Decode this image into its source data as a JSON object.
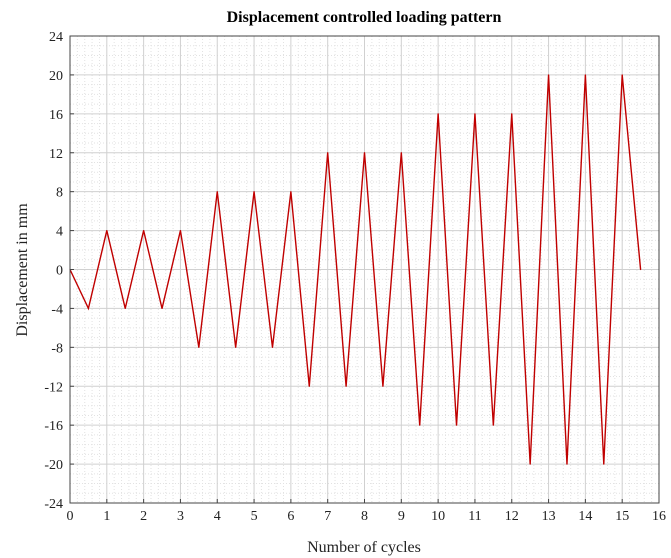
{
  "chart_data": {
    "type": "line",
    "title": "Displacement controlled loading pattern",
    "xlabel": "Number of cycles",
    "ylabel": "Displacement in mm",
    "xlim": [
      0,
      16
    ],
    "ylim": [
      -24,
      24
    ],
    "xticks": [
      0,
      1,
      2,
      3,
      4,
      5,
      6,
      7,
      8,
      9,
      10,
      11,
      12,
      13,
      14,
      15,
      16
    ],
    "yticks": [
      -24,
      -20,
      -16,
      -12,
      -8,
      -4,
      0,
      4,
      8,
      12,
      16,
      20,
      24
    ],
    "grid": true,
    "minor_grid": true,
    "series": [
      {
        "color": "#c00000",
        "x": [
          0,
          0.5,
          1,
          1.5,
          2,
          2.5,
          3,
          3.5,
          4,
          4.5,
          5,
          5.5,
          6,
          6.5,
          7,
          7.5,
          8,
          8.5,
          9,
          9.5,
          10,
          10.5,
          11,
          11.5,
          12,
          12.5,
          13,
          13.5,
          14,
          14.5,
          15,
          15.5
        ],
        "y": [
          0,
          -4,
          4,
          -4,
          4,
          -4,
          4,
          -8,
          8,
          -8,
          8,
          -8,
          8,
          -12,
          12,
          -12,
          12,
          -12,
          12,
          -16,
          16,
          -16,
          16,
          -16,
          16,
          -20,
          20,
          -20,
          20,
          -20,
          20,
          0
        ]
      }
    ]
  }
}
